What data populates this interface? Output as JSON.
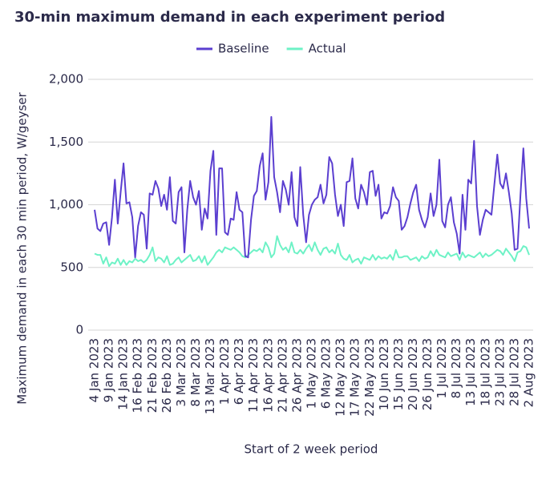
{
  "chart_data": {
    "type": "line",
    "title": "30-min maximum demand in each experiment period",
    "x_label": "Start of 2 week period",
    "y_label": "Maximum demand in each 30 min period, W/geyser",
    "legend_position": "top",
    "grid": true,
    "ylim": [
      0,
      2000
    ],
    "yticks": [
      0,
      500,
      {
        "value": 1000,
        "label": "1,000"
      },
      {
        "value": 1500,
        "label": "1,500"
      },
      {
        "value": 2000,
        "label": "2,000"
      }
    ],
    "categories": [
      "4 Jan 2023",
      null,
      null,
      null,
      null,
      "9 Jan 2023",
      null,
      null,
      null,
      null,
      "14 Jan 2023",
      null,
      null,
      null,
      null,
      "16 Feb 2023",
      null,
      null,
      null,
      null,
      "21 Feb 2023",
      null,
      null,
      null,
      null,
      "26 Feb 2023",
      null,
      null,
      null,
      null,
      "3 Mar 2023",
      null,
      null,
      null,
      null,
      "8 Mar 2023",
      null,
      null,
      null,
      null,
      "13 Mar 2023",
      null,
      null,
      null,
      null,
      "1 Apr 2023",
      null,
      null,
      null,
      null,
      "6 Apr 2023",
      null,
      null,
      null,
      null,
      "11 Apr 2023",
      null,
      null,
      null,
      null,
      "16 Apr 2023",
      null,
      null,
      null,
      null,
      "21 Apr 2023",
      null,
      null,
      null,
      null,
      "26 Apr 2023",
      null,
      null,
      null,
      null,
      "1 May 2023",
      null,
      null,
      null,
      null,
      "6 May 2023",
      null,
      null,
      null,
      null,
      "12 May 2023",
      null,
      null,
      null,
      null,
      "17 May 2023",
      null,
      null,
      null,
      null,
      "22 May 2023",
      null,
      null,
      null,
      null,
      "10 Jun 2023",
      null,
      null,
      null,
      null,
      "15 Jun 2023",
      null,
      null,
      null,
      null,
      "20 Jun 2023",
      null,
      null,
      null,
      null,
      "26 Jun 2023",
      null,
      null,
      null,
      null,
      "1 Jul 2023",
      null,
      null,
      null,
      null,
      "8 Jul 2023",
      null,
      null,
      null,
      null,
      "13 Jul 2023",
      null,
      null,
      null,
      null,
      "18 Jul 2023",
      null,
      null,
      null,
      null,
      "23 Jul 2023",
      null,
      null,
      null,
      null,
      "28 Jul 2023",
      null,
      null,
      null,
      null,
      "2 Aug 2023"
    ],
    "series": [
      {
        "name": "Baseline",
        "color": "#5b3fd0",
        "values": [
          960,
          810,
          790,
          850,
          860,
          680,
          900,
          1200,
          850,
          1100,
          1330,
          1010,
          1020,
          900,
          580,
          830,
          940,
          920,
          650,
          1090,
          1080,
          1190,
          1130,
          990,
          1080,
          960,
          1220,
          870,
          850,
          1100,
          1140,
          620,
          960,
          1190,
          1060,
          1000,
          1110,
          800,
          970,
          890,
          1270,
          1430,
          760,
          1290,
          1290,
          780,
          760,
          890,
          880,
          1100,
          960,
          940,
          590,
          580,
          880,
          1070,
          1110,
          1310,
          1410,
          1040,
          1180,
          1700,
          1220,
          1100,
          940,
          1190,
          1120,
          1000,
          1260,
          900,
          830,
          1300,
          920,
          700,
          920,
          1000,
          1040,
          1060,
          1160,
          1010,
          1080,
          1380,
          1330,
          1080,
          910,
          1000,
          830,
          1180,
          1190,
          1370,
          1050,
          970,
          1160,
          1100,
          1000,
          1260,
          1270,
          1070,
          1160,
          890,
          940,
          930,
          990,
          1140,
          1060,
          1030,
          800,
          830,
          900,
          1010,
          1100,
          1160,
          960,
          880,
          820,
          900,
          1090,
          910,
          1000,
          1360,
          870,
          820,
          1000,
          1060,
          860,
          770,
          610,
          1080,
          800,
          1200,
          1170,
          1510,
          990,
          760,
          880,
          960,
          940,
          920,
          1160,
          1400,
          1170,
          1130,
          1250,
          1100,
          930,
          640,
          650,
          1080,
          1450,
          1050,
          810
        ]
      },
      {
        "name": "Actual",
        "color": "#6ef2c6",
        "values": [
          610,
          600,
          600,
          530,
          580,
          510,
          540,
          530,
          570,
          520,
          560,
          520,
          550,
          540,
          570,
          550,
          560,
          540,
          560,
          600,
          660,
          550,
          580,
          570,
          540,
          590,
          520,
          530,
          560,
          580,
          540,
          560,
          580,
          600,
          550,
          560,
          590,
          540,
          590,
          520,
          550,
          580,
          620,
          640,
          620,
          660,
          650,
          640,
          660,
          640,
          620,
          590,
          580,
          600,
          620,
          640,
          630,
          650,
          620,
          700,
          660,
          580,
          610,
          750,
          680,
          640,
          660,
          620,
          700,
          620,
          610,
          640,
          610,
          650,
          680,
          630,
          700,
          640,
          600,
          650,
          660,
          620,
          640,
          610,
          690,
          600,
          570,
          560,
          600,
          540,
          560,
          570,
          530,
          580,
          570,
          560,
          600,
          560,
          590,
          570,
          580,
          570,
          600,
          560,
          640,
          580,
          580,
          590,
          590,
          560,
          570,
          580,
          550,
          590,
          570,
          580,
          630,
          590,
          640,
          600,
          590,
          580,
          620,
          590,
          600,
          610,
          560,
          620,
          580,
          600,
          590,
          580,
          600,
          620,
          580,
          610,
          590,
          600,
          620,
          640,
          630,
          600,
          650,
          620,
          590,
          550,
          620,
          630,
          670,
          660,
          600
        ]
      }
    ]
  }
}
